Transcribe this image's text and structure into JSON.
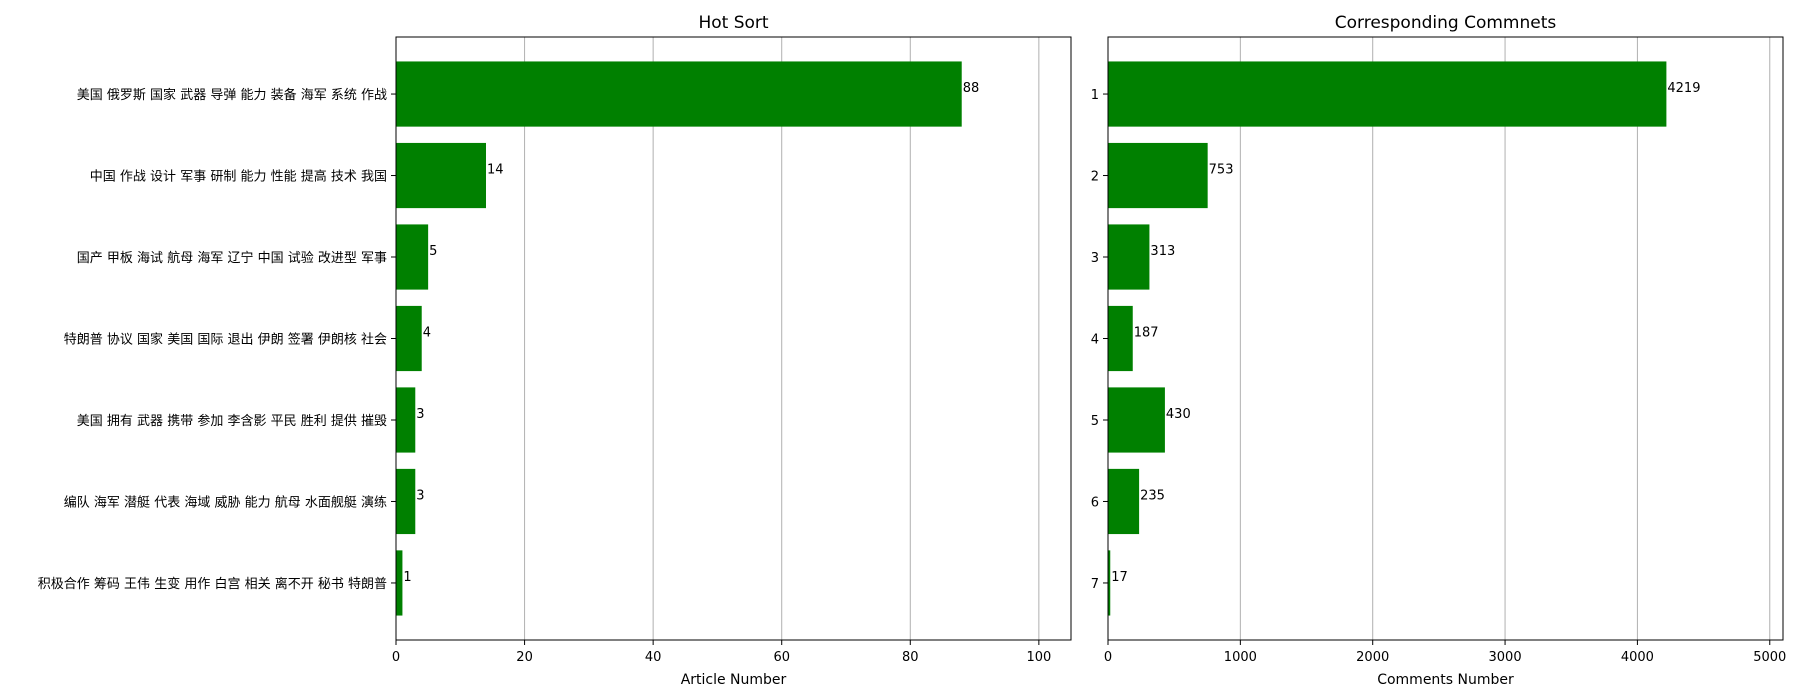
{
  "chart_data": [
    {
      "type": "bar",
      "orientation": "horizontal",
      "title": "Hot Sort",
      "xlabel": "Article Number",
      "ylabel": "",
      "categories": [
        "美国 俄罗斯 国家 武器 导弹 能力 装备 海军 系统 作战",
        "中国 作战 设计 军事 研制 能力 性能 提高 技术 我国",
        "国产 甲板 海试 航母 海军 辽宁 中国 试验 改进型 军事",
        "特朗普 协议 国家 美国 国际 退出 伊朗 签署 伊朗核 社会",
        "美国 拥有 武器 携带 参加 李含影 平民 胜利 提供 摧毁",
        "编队 海军 潜艇 代表 海域 威胁 能力 航母 水面舰艇 演练",
        "积极合作 筹码 王伟 生变 用作 白宫 相关 离不开 秘书 特朗普"
      ],
      "values": [
        88,
        14,
        5,
        4,
        3,
        3,
        1
      ],
      "value_labels": [
        "88",
        "14",
        "5",
        "4",
        "3",
        "3",
        "1"
      ],
      "xlim": [
        0,
        105
      ],
      "xticks": [
        "0",
        "20",
        "40",
        "60",
        "80",
        "100"
      ],
      "xtick_values": [
        0,
        20,
        40,
        60,
        80,
        100
      ],
      "grid": "x",
      "bar_color": "#008000"
    },
    {
      "type": "bar",
      "orientation": "horizontal",
      "title": "Corresponding Commnets",
      "xlabel": "Comments Number",
      "ylabel": "",
      "categories": [
        "1",
        "2",
        "3",
        "4",
        "5",
        "6",
        "7"
      ],
      "values": [
        4219,
        753,
        313,
        187,
        430,
        235,
        17
      ],
      "value_labels": [
        "4219",
        "753",
        "313",
        "187",
        "430",
        "235",
        "17"
      ],
      "xlim": [
        0,
        5100
      ],
      "xticks": [
        "0",
        "1000",
        "2000",
        "3000",
        "4000",
        "5000"
      ],
      "xtick_values": [
        0,
        1000,
        2000,
        3000,
        4000,
        5000
      ],
      "grid": "x",
      "bar_color": "#008000"
    }
  ]
}
